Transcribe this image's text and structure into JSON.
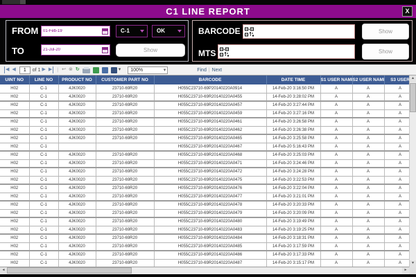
{
  "window": {
    "title": "C1 LINE REPORT",
    "close_label": "X"
  },
  "filters": {
    "from_label": "FROM",
    "to_label": "TO",
    "from_date": "01-Feb-19",
    "to_date": "21-Jul-20",
    "line_selected": "C-1",
    "status_selected": "OK",
    "show_label": "Show",
    "barcode_label": "BARCODE",
    "mts_label": "MTS",
    "barcode_value": "",
    "mts_value": ""
  },
  "toolbar": {
    "page_number": "1",
    "of_label": "of 1",
    "zoom_value": "100%",
    "find_label": "Find",
    "next_label": "Next",
    "separator": "|",
    "icons": {
      "first": "◀",
      "prev": "◀",
      "next": "▶",
      "last": "▶",
      "back": "↩",
      "stop": "⊗",
      "refresh": "↻",
      "export_caret": "▾",
      "zoom_caret": "▾",
      "scroll_up": "▴",
      "scroll_down": "▾",
      "scroll_left": "◂",
      "scroll_right": "▸"
    }
  },
  "table": {
    "columns": [
      "UINT NO",
      "LINE NO",
      "PRODUCT NO",
      "CUSTOMER PART NO",
      "BARCODE",
      "DATE TIME",
      "S1 USER NAME",
      "S2 USER NAME",
      "S3 USER"
    ],
    "rows": [
      [
        "H02",
        "C-1",
        "4JK0020",
        "23710-69R20",
        "H055C23710-69P20140220A0914",
        "14-Feb-20 3:16:50 PM",
        "A",
        "A",
        "A"
      ],
      [
        "H02",
        "C-1",
        "4JK0020",
        "23710-69R20",
        "H055C23710-69R20140220A0455",
        "14-Feb-20 3:28:02 PM",
        "A",
        "A",
        "A"
      ],
      [
        "H02",
        "C-1",
        "4JK0020",
        "23710-69R20",
        "H055C23710-69R20140220A0457",
        "14-Feb-20 3:27:44 PM",
        "A",
        "A",
        "A"
      ],
      [
        "H02",
        "C-1",
        "4JK0020",
        "23710-69R20",
        "H055C23710-69R20140220A0459",
        "14-Feb-20 3:27:16 PM",
        "A",
        "A",
        "A"
      ],
      [
        "H02",
        "C-1",
        "4JK0020",
        "23710-69R20",
        "H055C23710-69R20140220A0461",
        "14-Feb-20 3:26:58 PM",
        "A",
        "A",
        "A"
      ],
      [
        "H02",
        "C-1",
        "4JK0020",
        "23710-69R20",
        "H055C23710-69R20140220A0462",
        "14-Feb-20 3:26:38 PM",
        "A",
        "A",
        "A"
      ],
      [
        "H02",
        "C-1",
        "4JK0020",
        "23710-69R20",
        "H055C23710-69R20140220A0465",
        "14-Feb-20 3:25:58 PM",
        "A",
        "A",
        "A"
      ],
      [
        "H02",
        "C-1",
        "",
        "",
        "H055C23710-69R20140220A0467",
        "14-Feb-20 5:16:43 PM",
        "A",
        "A",
        "A"
      ],
      [
        "H02",
        "C-1",
        "4JK0020",
        "23710-69R20",
        "H055C23710-69R20140220A0468",
        "14-Feb-20 3:25:03 PM",
        "A",
        "A",
        "A"
      ],
      [
        "H02",
        "C-1",
        "4JK0020",
        "23710-69R20",
        "H055C23710-69R20140220A0471",
        "14-Feb-20 3:24:46 PM",
        "A",
        "A",
        "A"
      ],
      [
        "H02",
        "C-1",
        "4JK0020",
        "23710-69R20",
        "H055C23710-69R20140220A0472",
        "14-Feb-20 3:24:28 PM",
        "A",
        "A",
        "A"
      ],
      [
        "H02",
        "C-1",
        "4JK0020",
        "23710-69R20",
        "H055C23710-69R20140220A0475",
        "14-Feb-20 3:22:53 PM",
        "A",
        "A",
        "A"
      ],
      [
        "H02",
        "C-1",
        "4JK0020",
        "23710-69R20",
        "H055C23710-69R20140220A0476",
        "14-Feb-20 3:22:04 PM",
        "A",
        "A",
        "A"
      ],
      [
        "H02",
        "C-1",
        "4JK0020",
        "23710-69R20",
        "H055C23710-69R20140220A0477",
        "14-Feb-20 3:21:01 PM",
        "A",
        "A",
        "A"
      ],
      [
        "H02",
        "C-1",
        "4JK0020",
        "23710-69R20",
        "H055C23710-69R20140220A0478",
        "14-Feb-20 3:20:33 PM",
        "A",
        "A",
        "A"
      ],
      [
        "H02",
        "C-1",
        "4JK0020",
        "23710-69R20",
        "H055C23710-69R20140220A0479",
        "14-Feb-20 3:20:09 PM",
        "A",
        "A",
        "A"
      ],
      [
        "H02",
        "C-1",
        "4JK0020",
        "23710-69R20",
        "H055C23710-69R20140220A0480",
        "14-Feb-20 3:19:49 PM",
        "A",
        "A",
        "A"
      ],
      [
        "H02",
        "C-1",
        "4JK0020",
        "23710-69R20",
        "H055C23710-69R20140220A0483",
        "14-Feb-20 3:19:25 PM",
        "A",
        "A",
        "A"
      ],
      [
        "H02",
        "C-1",
        "4JK0020",
        "23710-69R20",
        "H055C23710-69R20140220A0484",
        "14-Feb-20 3:18:31 PM",
        "A",
        "A",
        "A"
      ],
      [
        "H02",
        "C-1",
        "4JK0020",
        "23710-69R20",
        "H055C23710-69R20140220A0485",
        "14-Feb-20 3:17:59 PM",
        "A",
        "A",
        "A"
      ],
      [
        "H02",
        "C-1",
        "4JK0020",
        "23710-69R20",
        "H055C23710-69R20140220A0486",
        "14-Feb-20 3:17:33 PM",
        "A",
        "A",
        "A"
      ],
      [
        "H02",
        "C-1",
        "4JK0020",
        "23710-69R20",
        "H055C23710-69R20140220A0487",
        "14-Feb-20 3:15:17 PM",
        "A",
        "A",
        "A"
      ]
    ]
  },
  "colors": {
    "titlebar_purple": "#8d0b8d",
    "table_header_blue": "#3d5c94",
    "date_text_purple": "#8B008B",
    "refresh_green": "#3f9b4f"
  }
}
